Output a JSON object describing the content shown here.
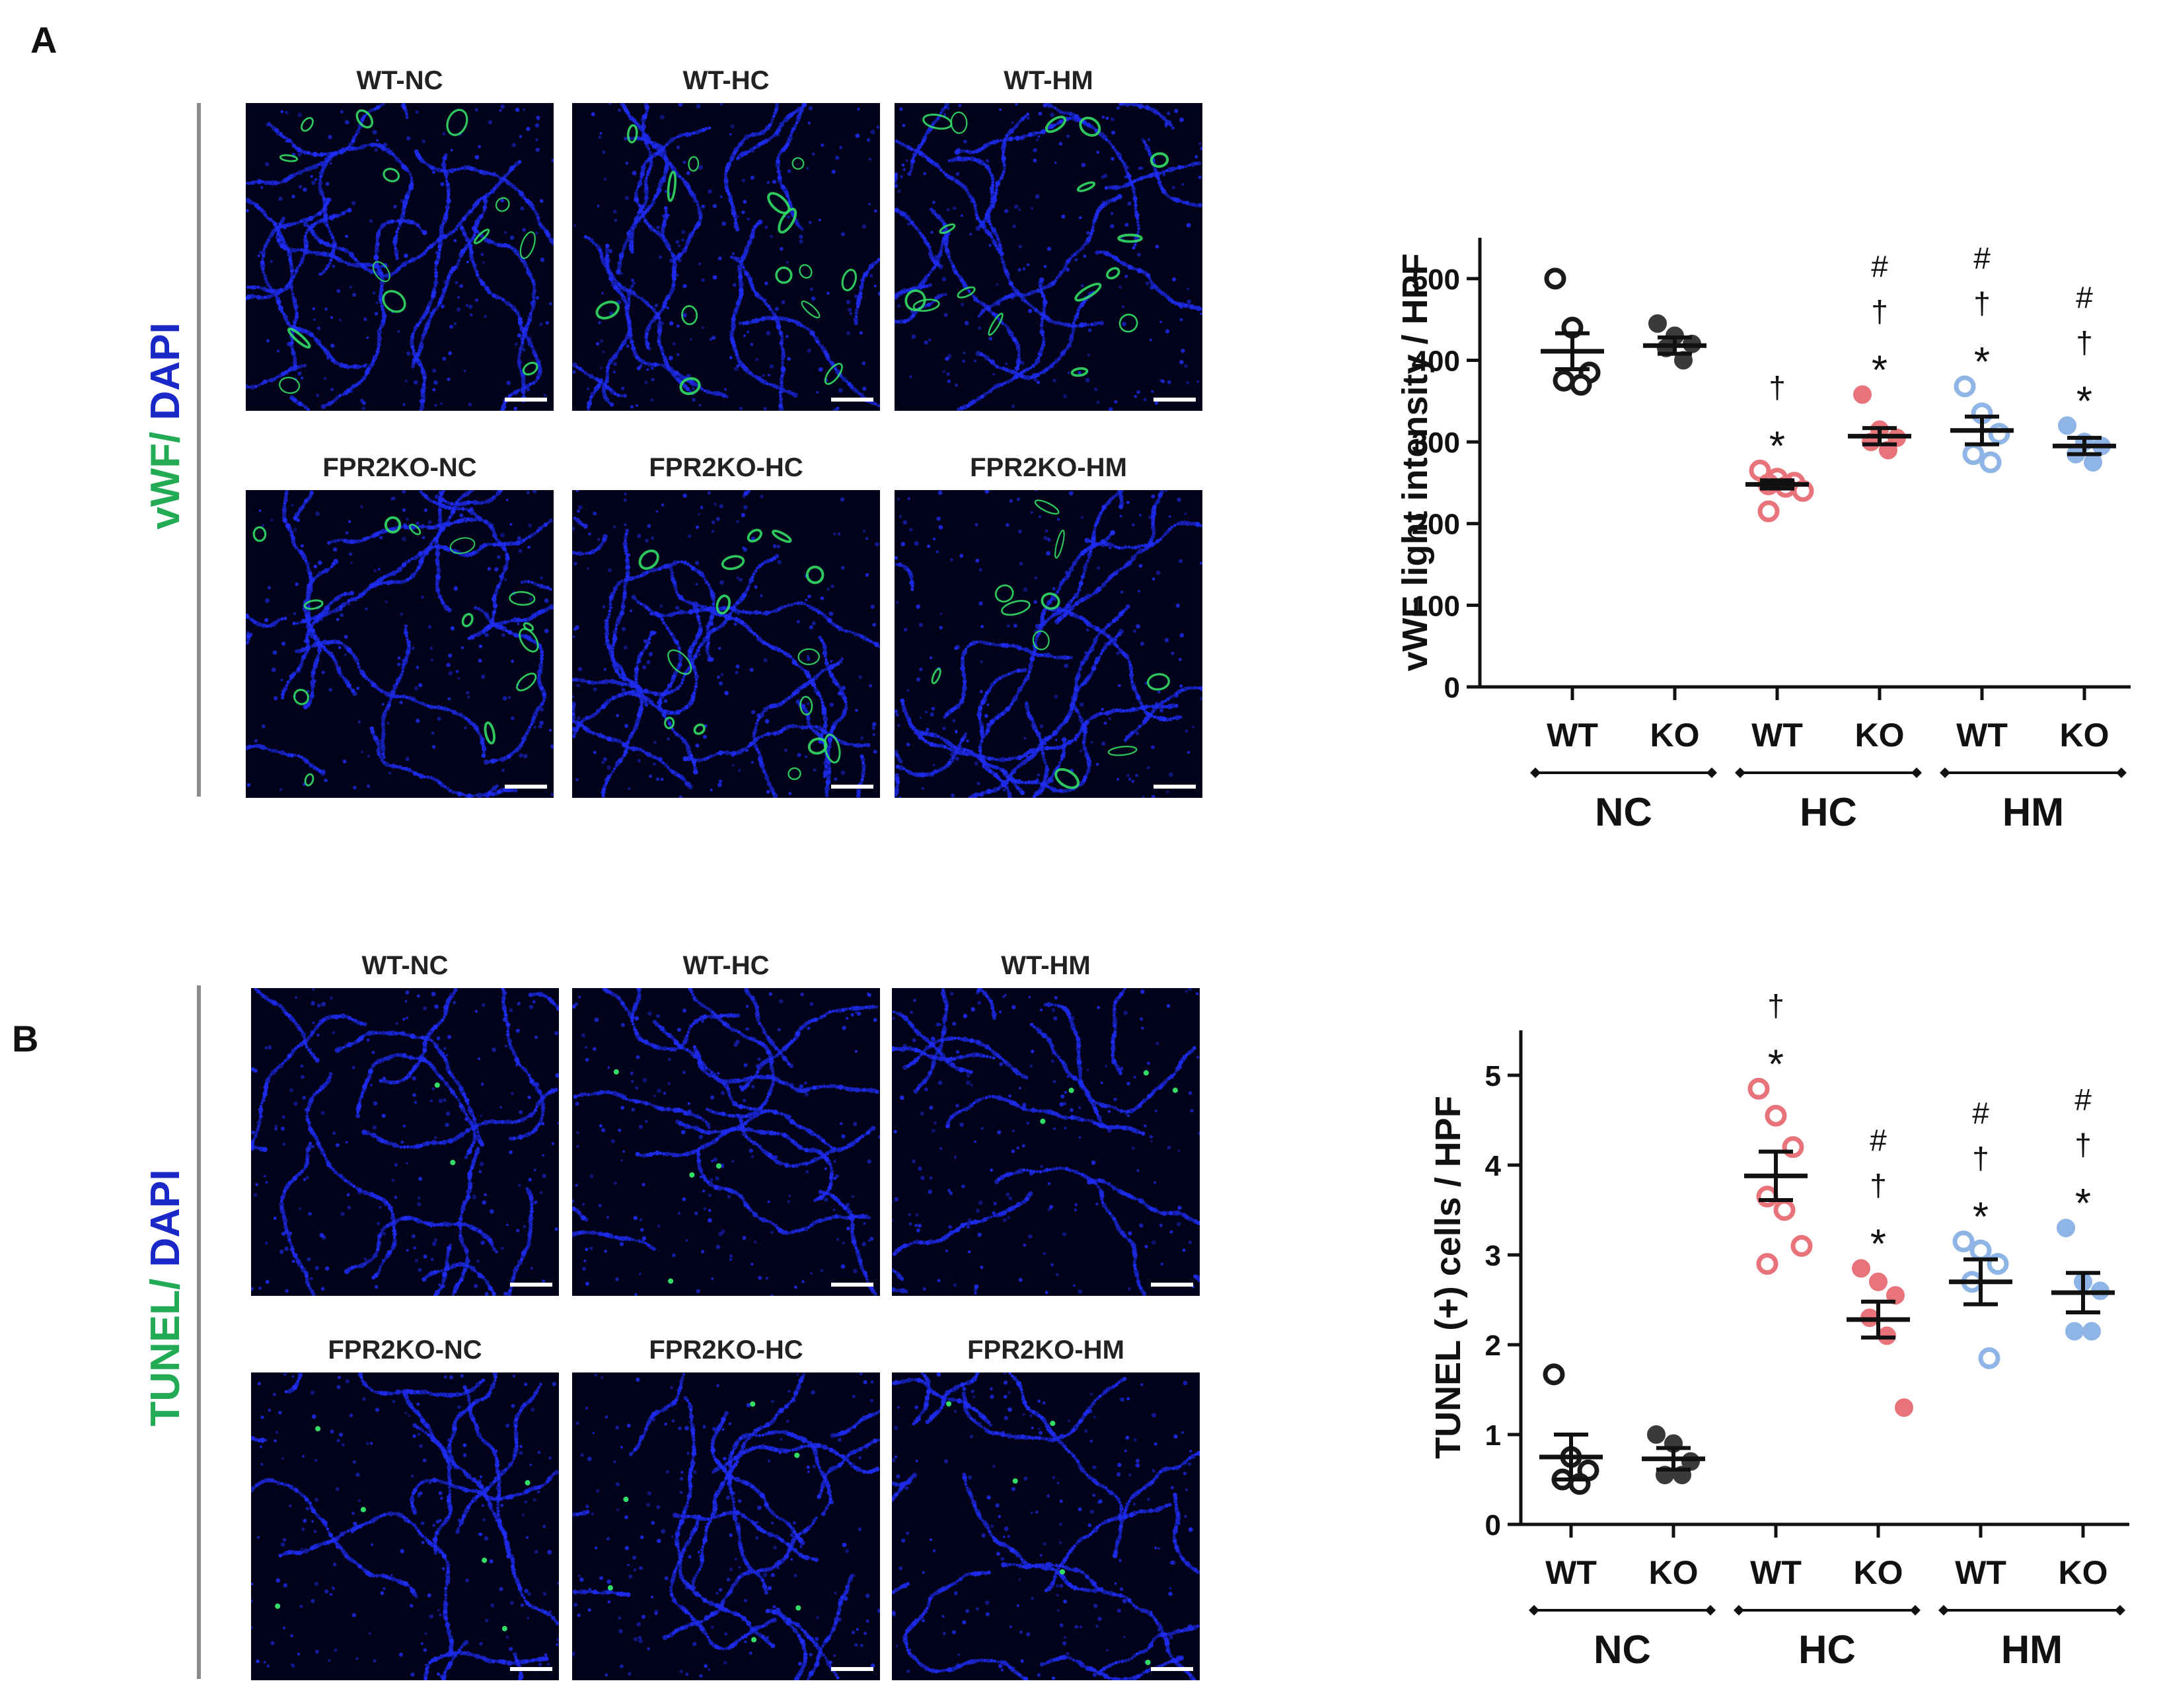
{
  "panel_a": {
    "letter": "A",
    "stain_green": "vWF",
    "stain_slash": "/",
    "stain_blue": " DAPI",
    "tiles": [
      "WT-NC",
      "WT-HC",
      "WT-HM",
      "FPR2KO-NC",
      "FPR2KO-HC",
      "FPR2KO-HM"
    ]
  },
  "panel_b": {
    "letter": "B",
    "stain_green": "TUNEL",
    "stain_slash": "/",
    "stain_blue": " DAPI",
    "tiles": [
      "WT-NC",
      "WT-HC",
      "WT-HM",
      "FPR2KO-NC",
      "FPR2KO-HC",
      "FPR2KO-HM"
    ]
  },
  "colors": {
    "green_label": "#22aa55",
    "blue_label": "#1a28c8",
    "wt_nc": "#1a1a1a",
    "ko_nc": "#3a3a3a",
    "hc": "#e8737b",
    "hm": "#8fb4e6",
    "vessel": "#33dd66",
    "nuclei": "#1e2cf0"
  },
  "chart_data": [
    {
      "type": "scatter",
      "id": "vwf",
      "title": "",
      "xlabel": "",
      "ylabel": "vWF light intensity / HPF",
      "ylim": [
        0,
        550
      ],
      "yticks": [
        0,
        100,
        200,
        300,
        400,
        500
      ],
      "groups": [
        {
          "name": "WT",
          "group": "NC",
          "mean": 411,
          "sem": 22,
          "fill": "open",
          "color_key": "wt_nc",
          "points": [
            500,
            440,
            385,
            375,
            370
          ],
          "annotations": []
        },
        {
          "name": "KO",
          "group": "NC",
          "mean": 418,
          "sem": 10,
          "fill": "filled",
          "color_key": "ko_nc",
          "points": [
            445,
            430,
            420,
            415,
            400
          ],
          "annotations": []
        },
        {
          "name": "WT",
          "group": "HC",
          "mean": 248,
          "sem": 5,
          "fill": "open",
          "color_key": "hc",
          "points": [
            265,
            255,
            250,
            248,
            245,
            240,
            215
          ],
          "annotations": [
            "*",
            "†"
          ]
        },
        {
          "name": "KO",
          "group": "HC",
          "mean": 307,
          "sem": 10,
          "fill": "filled",
          "color_key": "hc",
          "points": [
            358,
            315,
            305,
            300,
            290
          ],
          "annotations": [
            "*",
            "†",
            "#"
          ]
        },
        {
          "name": "WT",
          "group": "HM",
          "mean": 314,
          "sem": 17,
          "fill": "open",
          "color_key": "hm",
          "points": [
            368,
            335,
            310,
            285,
            275
          ],
          "annotations": [
            "*",
            "†",
            "#"
          ]
        },
        {
          "name": "KO",
          "group": "HM",
          "mean": 295,
          "sem": 10,
          "fill": "filled",
          "color_key": "hm",
          "points": [
            320,
            300,
            295,
            285,
            275
          ],
          "annotations": [
            "*",
            "†",
            "#"
          ]
        }
      ],
      "bracket_labels": [
        "NC",
        "HC",
        "HM"
      ]
    },
    {
      "type": "scatter",
      "id": "tunel",
      "title": "",
      "xlabel": "",
      "ylabel": "TUNEL (+) cells / HPF",
      "ylim": [
        0,
        5.5
      ],
      "yticks": [
        0,
        1,
        2,
        3,
        4,
        5
      ],
      "groups": [
        {
          "name": "WT",
          "group": "NC",
          "mean": 0.75,
          "sem": 0.25,
          "fill": "open",
          "color_key": "wt_nc",
          "points": [
            1.67,
            0.75,
            0.6,
            0.5,
            0.45
          ],
          "annotations": []
        },
        {
          "name": "KO",
          "group": "NC",
          "mean": 0.73,
          "sem": 0.12,
          "fill": "filled",
          "color_key": "ko_nc",
          "points": [
            1.0,
            0.9,
            0.7,
            0.55,
            0.55
          ],
          "annotations": []
        },
        {
          "name": "WT",
          "group": "HC",
          "mean": 3.88,
          "sem": 0.27,
          "fill": "open",
          "color_key": "hc",
          "points": [
            4.85,
            4.55,
            4.2,
            3.65,
            3.5,
            3.1,
            2.9
          ],
          "annotations": [
            "*",
            "†"
          ]
        },
        {
          "name": "KO",
          "group": "HC",
          "mean": 2.28,
          "sem": 0.2,
          "fill": "filled",
          "color_key": "hc",
          "points": [
            2.85,
            2.7,
            2.55,
            2.3,
            2.1,
            1.3
          ],
          "annotations": [
            "*",
            "†",
            "#"
          ]
        },
        {
          "name": "WT",
          "group": "HM",
          "mean": 2.7,
          "sem": 0.25,
          "fill": "open",
          "color_key": "hm",
          "points": [
            3.15,
            3.05,
            2.9,
            2.7,
            1.85
          ],
          "annotations": [
            "*",
            "†",
            "#"
          ]
        },
        {
          "name": "KO",
          "group": "HM",
          "mean": 2.58,
          "sem": 0.22,
          "fill": "filled",
          "color_key": "hm",
          "points": [
            3.3,
            2.7,
            2.6,
            2.15,
            2.15
          ],
          "annotations": [
            "*",
            "†",
            "#"
          ]
        }
      ],
      "bracket_labels": [
        "NC",
        "HC",
        "HM"
      ]
    }
  ]
}
